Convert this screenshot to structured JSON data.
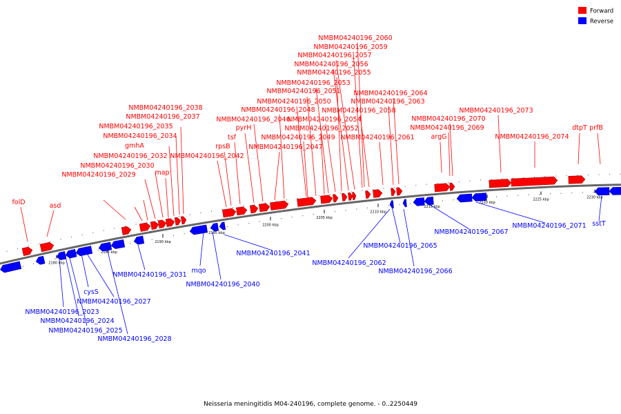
{
  "caption": "Neisseria meningitidis M04-240196, complete genome. - 0..2250449",
  "legend": [
    {
      "label": "Forward",
      "color": "#ff0000"
    },
    {
      "label": "Reverse",
      "color": "#0000ff"
    }
  ],
  "colors": {
    "forward": "#ff0000",
    "reverse": "#0000ff",
    "backbone": "#666666"
  },
  "ticks": [
    "2180 kbp",
    "2185 kbp",
    "2190 kbp",
    "2195 kbp",
    "2200 kbp",
    "2205 kbp",
    "2210 kbp",
    "2215 kbp",
    "2220 kbp",
    "2225 kbp",
    "2230 kbp"
  ],
  "forward_labels": [
    "folD",
    "asd",
    "NMBM04240196_2029",
    "NMBM04240196_2030",
    "NMBM04240196_2032",
    "gmhA",
    "NMBM04240196_2034",
    "map",
    "NMBM04240196_2035",
    "NMBM04240196_2037",
    "NMBM04240196_2038",
    "NMBM04240196_2042",
    "rpsB",
    "tsf",
    "pyrH",
    "NMBM04240196_2046",
    "NMBM04240196_2047",
    "NMBM04240196_2048",
    "NMBM04240196_2049",
    "NMBM04240196_2050",
    "NMBM04240196_2051",
    "NMBM04240196_2052",
    "NMBM04240196_2053",
    "NMBM04240196_2054",
    "NMBM04240196_2055",
    "NMBM04240196_2056",
    "NMBM04240196_2057",
    "NMBM04240196_2058",
    "NMBM04240196_2059",
    "NMBM04240196_2060",
    "NMBM04240196_2061",
    "NMBM04240196_2063",
    "NMBM04240196_2064",
    "argG",
    "NMBM04240196_2069",
    "NMBM04240196_2070",
    "NMBM04240196_2073",
    "NMBM04240196_2074",
    "dtpT",
    "prfB"
  ],
  "reverse_labels": [
    "NMBM04240196_2023",
    "NMBM04240196_2024",
    "NMBM04240196_2025",
    "cysS",
    "NMBM04240196_2027",
    "NMBM04240196_2028",
    "NMBM04240196_2031",
    "mqo",
    "NMBM04240196_2040",
    "NMBM04240196_2041",
    "NMBM04240196_2062",
    "NMBM04240196_2065",
    "NMBM04240196_2066",
    "NMBM04240196_2067",
    "NMBM04240196_2071",
    "sstT"
  ]
}
